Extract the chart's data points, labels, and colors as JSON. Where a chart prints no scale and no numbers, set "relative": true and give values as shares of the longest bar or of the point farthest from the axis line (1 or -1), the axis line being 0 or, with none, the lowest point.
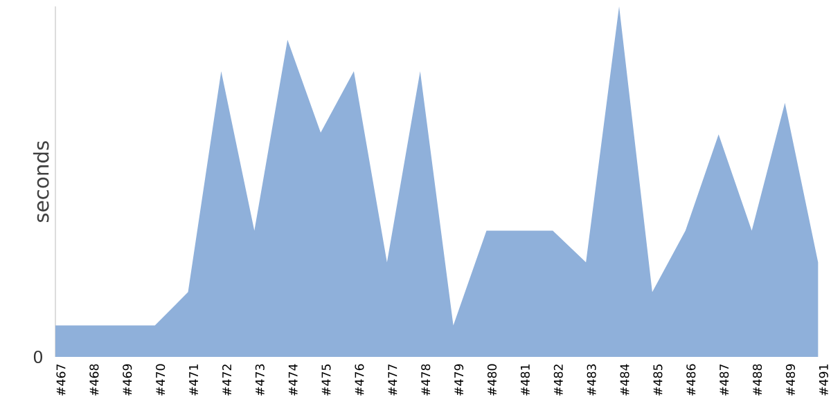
{
  "chart_data": {
    "type": "area",
    "ylabel": "seconds",
    "relative": true,
    "color": "#8fb0da",
    "categories": [
      "#467",
      "#468",
      "#469",
      "#470",
      "#471",
      "#472",
      "#473",
      "#474",
      "#475",
      "#476",
      "#477",
      "#478",
      "#479",
      "#480",
      "#481",
      "#482",
      "#483",
      "#484",
      "#485",
      "#486",
      "#487",
      "#488",
      "#489",
      "#491"
    ],
    "values": [
      0.09,
      0.09,
      0.09,
      0.09,
      0.185,
      0.815,
      0.36,
      0.905,
      0.64,
      0.815,
      0.27,
      0.815,
      0.09,
      0.36,
      0.36,
      0.36,
      0.27,
      1,
      0.185,
      0.36,
      0.635,
      0.36,
      0.725,
      0.27
    ],
    "annotations": [
      "0"
    ]
  }
}
